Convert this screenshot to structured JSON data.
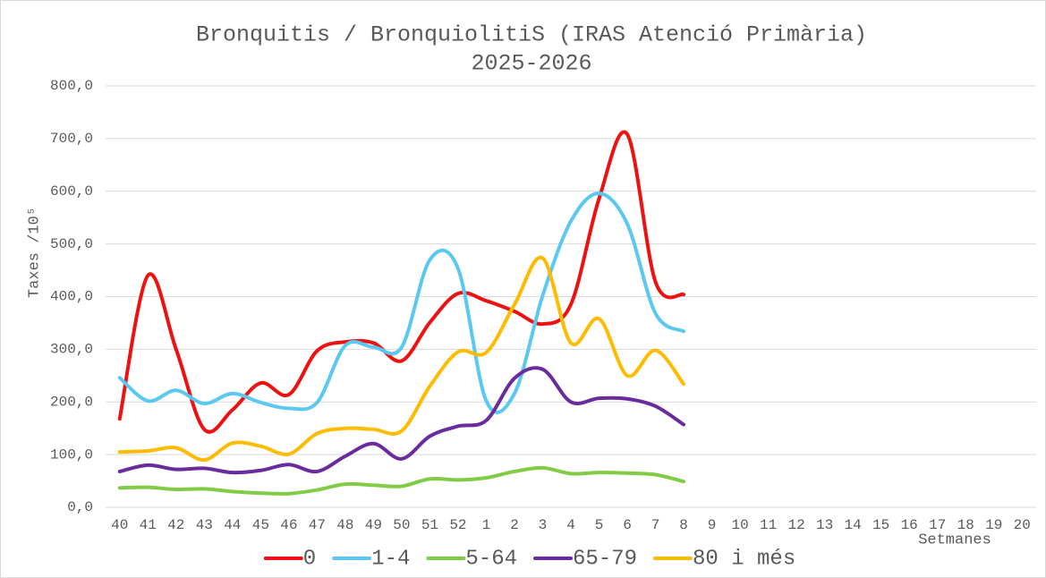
{
  "chart_data": {
    "type": "line",
    "title": "Bronquitis / BronquiolitiS (IRAS Atenció Primària)",
    "subtitle": "2025-2026",
    "y_label": "Taxes /10⁵",
    "x_label": "Setmanes",
    "categories": [
      "40",
      "41",
      "42",
      "43",
      "44",
      "45",
      "46",
      "47",
      "48",
      "49",
      "50",
      "51",
      "52",
      "1",
      "2",
      "3",
      "4",
      "5",
      "6",
      "7",
      "8",
      "9",
      "10",
      "11",
      "12",
      "13",
      "14",
      "15",
      "16",
      "17",
      "18",
      "19",
      "20"
    ],
    "series": [
      {
        "name": "0",
        "color": "#ee1111",
        "values": [
          168,
          440,
          300,
          148,
          185,
          236,
          214,
          297,
          314,
          312,
          278,
          351,
          406,
          392,
          372,
          348,
          385,
          586,
          708,
          428,
          404,
          null,
          null,
          null,
          null,
          null,
          null,
          null,
          null,
          null,
          null,
          null,
          null
        ]
      },
      {
        "name": "1-4",
        "color": "#5bc8f0",
        "values": [
          246,
          202,
          222,
          197,
          216,
          199,
          188,
          199,
          307,
          304,
          304,
          470,
          453,
          202,
          216,
          402,
          543,
          596,
          538,
          368,
          334,
          null,
          null,
          null,
          null,
          null,
          null,
          null,
          null,
          null,
          null,
          null,
          null
        ]
      },
      {
        "name": "5-64",
        "color": "#80cc44",
        "values": [
          37,
          38,
          34,
          35,
          30,
          27,
          26,
          33,
          44,
          42,
          40,
          54,
          52,
          56,
          68,
          75,
          64,
          66,
          65,
          62,
          49,
          null,
          null,
          null,
          null,
          null,
          null,
          null,
          null,
          null,
          null,
          null,
          null
        ]
      },
      {
        "name": "65-79",
        "color": "#6a2c9c",
        "values": [
          68,
          80,
          72,
          74,
          66,
          70,
          81,
          68,
          97,
          121,
          92,
          135,
          154,
          165,
          245,
          262,
          200,
          207,
          206,
          192,
          157,
          null,
          null,
          null,
          null,
          null,
          null,
          null,
          null,
          null,
          null,
          null,
          null
        ]
      },
      {
        "name": "80 i més",
        "color": "#ffbb00",
        "values": [
          105,
          107,
          113,
          90,
          122,
          116,
          101,
          140,
          150,
          148,
          145,
          230,
          295,
          294,
          385,
          473,
          312,
          358,
          250,
          298,
          234,
          null,
          null,
          null,
          null,
          null,
          null,
          null,
          null,
          null,
          null,
          null,
          null
        ]
      }
    ],
    "ylim": [
      0,
      800
    ],
    "yticks": [
      {
        "value": 0,
        "label": "0,0"
      },
      {
        "value": 100,
        "label": "100,0"
      },
      {
        "value": 200,
        "label": "200,0"
      },
      {
        "value": 300,
        "label": "300,0"
      },
      {
        "value": 400,
        "label": "400,0"
      },
      {
        "value": 500,
        "label": "500,0"
      },
      {
        "value": 600,
        "label": "600,0"
      },
      {
        "value": 700,
        "label": "700,0"
      },
      {
        "value": 800,
        "label": "800,0"
      }
    ],
    "grid": true,
    "legend": "bottom"
  }
}
